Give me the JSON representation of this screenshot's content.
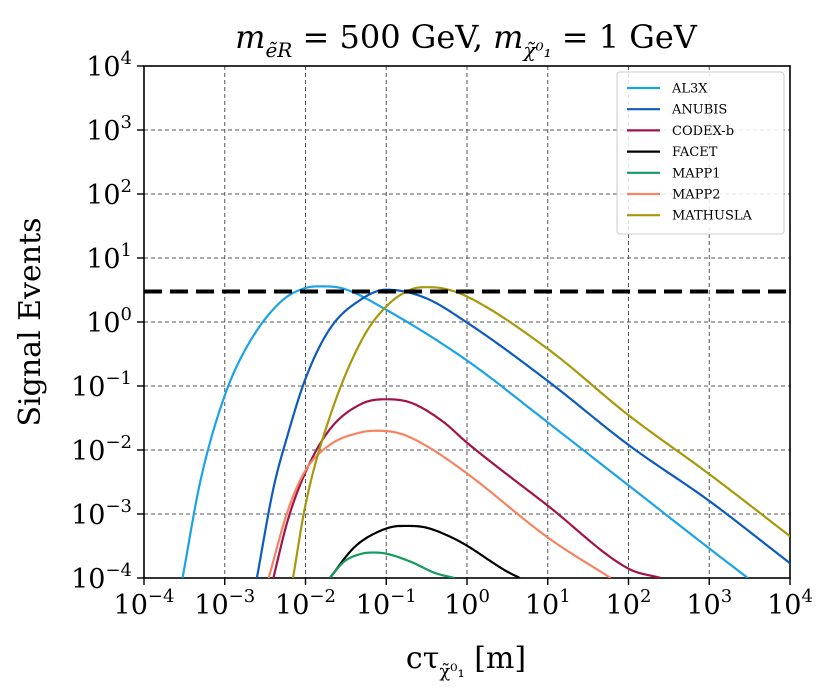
{
  "chart_data": {
    "type": "line",
    "title": "m_ẽR = 500 GeV, m_χ̃⁰₁ = 1 GeV",
    "title_parts": {
      "m1_sym": "m",
      "m1_sub": "ẽR",
      "m1_val": " = 500 GeV, ",
      "m2_sym": "m",
      "m2_sub": "χ̃⁰₁",
      "m2_val": " = 1 GeV"
    },
    "xlabel": "cτ_χ̃⁰₁ [m]",
    "xlabel_parts": {
      "main": "cτ",
      "sub": "χ̃⁰₁",
      "unit": " [m]"
    },
    "ylabel": "Signal Events",
    "xscale": "log",
    "yscale": "log",
    "xlim": [
      0.0001,
      10000
    ],
    "ylim": [
      0.0001,
      10000
    ],
    "x_ticks": [
      {
        "exp": "-4"
      },
      {
        "exp": "-3"
      },
      {
        "exp": "-2"
      },
      {
        "exp": "-1"
      },
      {
        "exp": "0"
      },
      {
        "exp": "1"
      },
      {
        "exp": "2"
      },
      {
        "exp": "3"
      },
      {
        "exp": "4"
      }
    ],
    "y_ticks": [
      {
        "exp": "-4"
      },
      {
        "exp": "-3"
      },
      {
        "exp": "-2"
      },
      {
        "exp": "-1"
      },
      {
        "exp": "0"
      },
      {
        "exp": "1"
      },
      {
        "exp": "2"
      },
      {
        "exp": "3"
      },
      {
        "exp": "4"
      }
    ],
    "tick_base": "10",
    "grid": true,
    "legend_position": "top-right",
    "reference_line": {
      "y": 3,
      "style": "dashed",
      "color": "#000000"
    },
    "series": [
      {
        "name": "AL3X",
        "color": "#1ba3e8",
        "x": [
          0.0003,
          0.0005,
          0.001,
          0.002,
          0.005,
          0.01,
          0.017,
          0.03,
          0.1,
          1,
          10,
          100,
          1000,
          3000
        ],
        "y": [
          0.0001,
          0.0033,
          0.071,
          0.47,
          2.1,
          3.4,
          3.6,
          3.3,
          1.55,
          0.25,
          0.027,
          0.0028,
          0.00029,
          0.0001
        ]
      },
      {
        "name": "ANUBIS",
        "color": "#0c5bbf",
        "x": [
          0.0025,
          0.004,
          0.006,
          0.01,
          0.02,
          0.05,
          0.1,
          0.3,
          1,
          10,
          100,
          1000,
          10000
        ],
        "y": [
          0.0001,
          0.0025,
          0.017,
          0.13,
          0.78,
          2.3,
          3.2,
          2.4,
          0.98,
          0.12,
          0.012,
          0.0016,
          0.00017
        ]
      },
      {
        "name": "CODEX-b",
        "color": "#a3124a",
        "x": [
          0.004,
          0.006,
          0.01,
          0.02,
          0.05,
          0.1,
          0.2,
          0.5,
          1,
          10,
          100,
          250
        ],
        "y": [
          0.0001,
          0.00078,
          0.0045,
          0.021,
          0.053,
          0.062,
          0.055,
          0.028,
          0.013,
          0.00135,
          0.00014,
          0.0001
        ]
      },
      {
        "name": "FACET",
        "color": "#000000",
        "x": [
          0.02,
          0.04,
          0.08,
          0.15,
          0.3,
          0.6,
          1,
          2,
          3,
          4.5
        ],
        "y": [
          0.0001,
          0.0003,
          0.00053,
          0.00065,
          0.00062,
          0.00045,
          0.00032,
          0.00018,
          0.00013,
          0.0001
        ]
      },
      {
        "name": "MAPP1",
        "color": "#159b5e",
        "x": [
          0.02,
          0.03,
          0.05,
          0.07,
          0.1,
          0.2,
          0.4,
          0.7
        ],
        "y": [
          0.0001,
          0.00018,
          0.00024,
          0.00025,
          0.00024,
          0.00018,
          0.00012,
          0.0001
        ]
      },
      {
        "name": "MAPP2",
        "color": "#f58460",
        "x": [
          0.0035,
          0.006,
          0.01,
          0.02,
          0.05,
          0.08,
          0.15,
          0.3,
          1,
          10,
          60
        ],
        "y": [
          0.0001,
          0.0011,
          0.0048,
          0.012,
          0.019,
          0.02,
          0.018,
          0.012,
          0.0043,
          0.00043,
          0.0001
        ]
      },
      {
        "name": "MATHUSLA",
        "color": "#a8980c",
        "x": [
          0.007,
          0.01,
          0.02,
          0.05,
          0.1,
          0.2,
          0.3,
          0.5,
          1,
          10,
          100,
          1000,
          10000
        ],
        "y": [
          0.0001,
          0.0014,
          0.033,
          0.53,
          1.75,
          3.2,
          3.5,
          3.35,
          2.5,
          0.38,
          0.035,
          0.0042,
          0.00045
        ]
      }
    ]
  }
}
